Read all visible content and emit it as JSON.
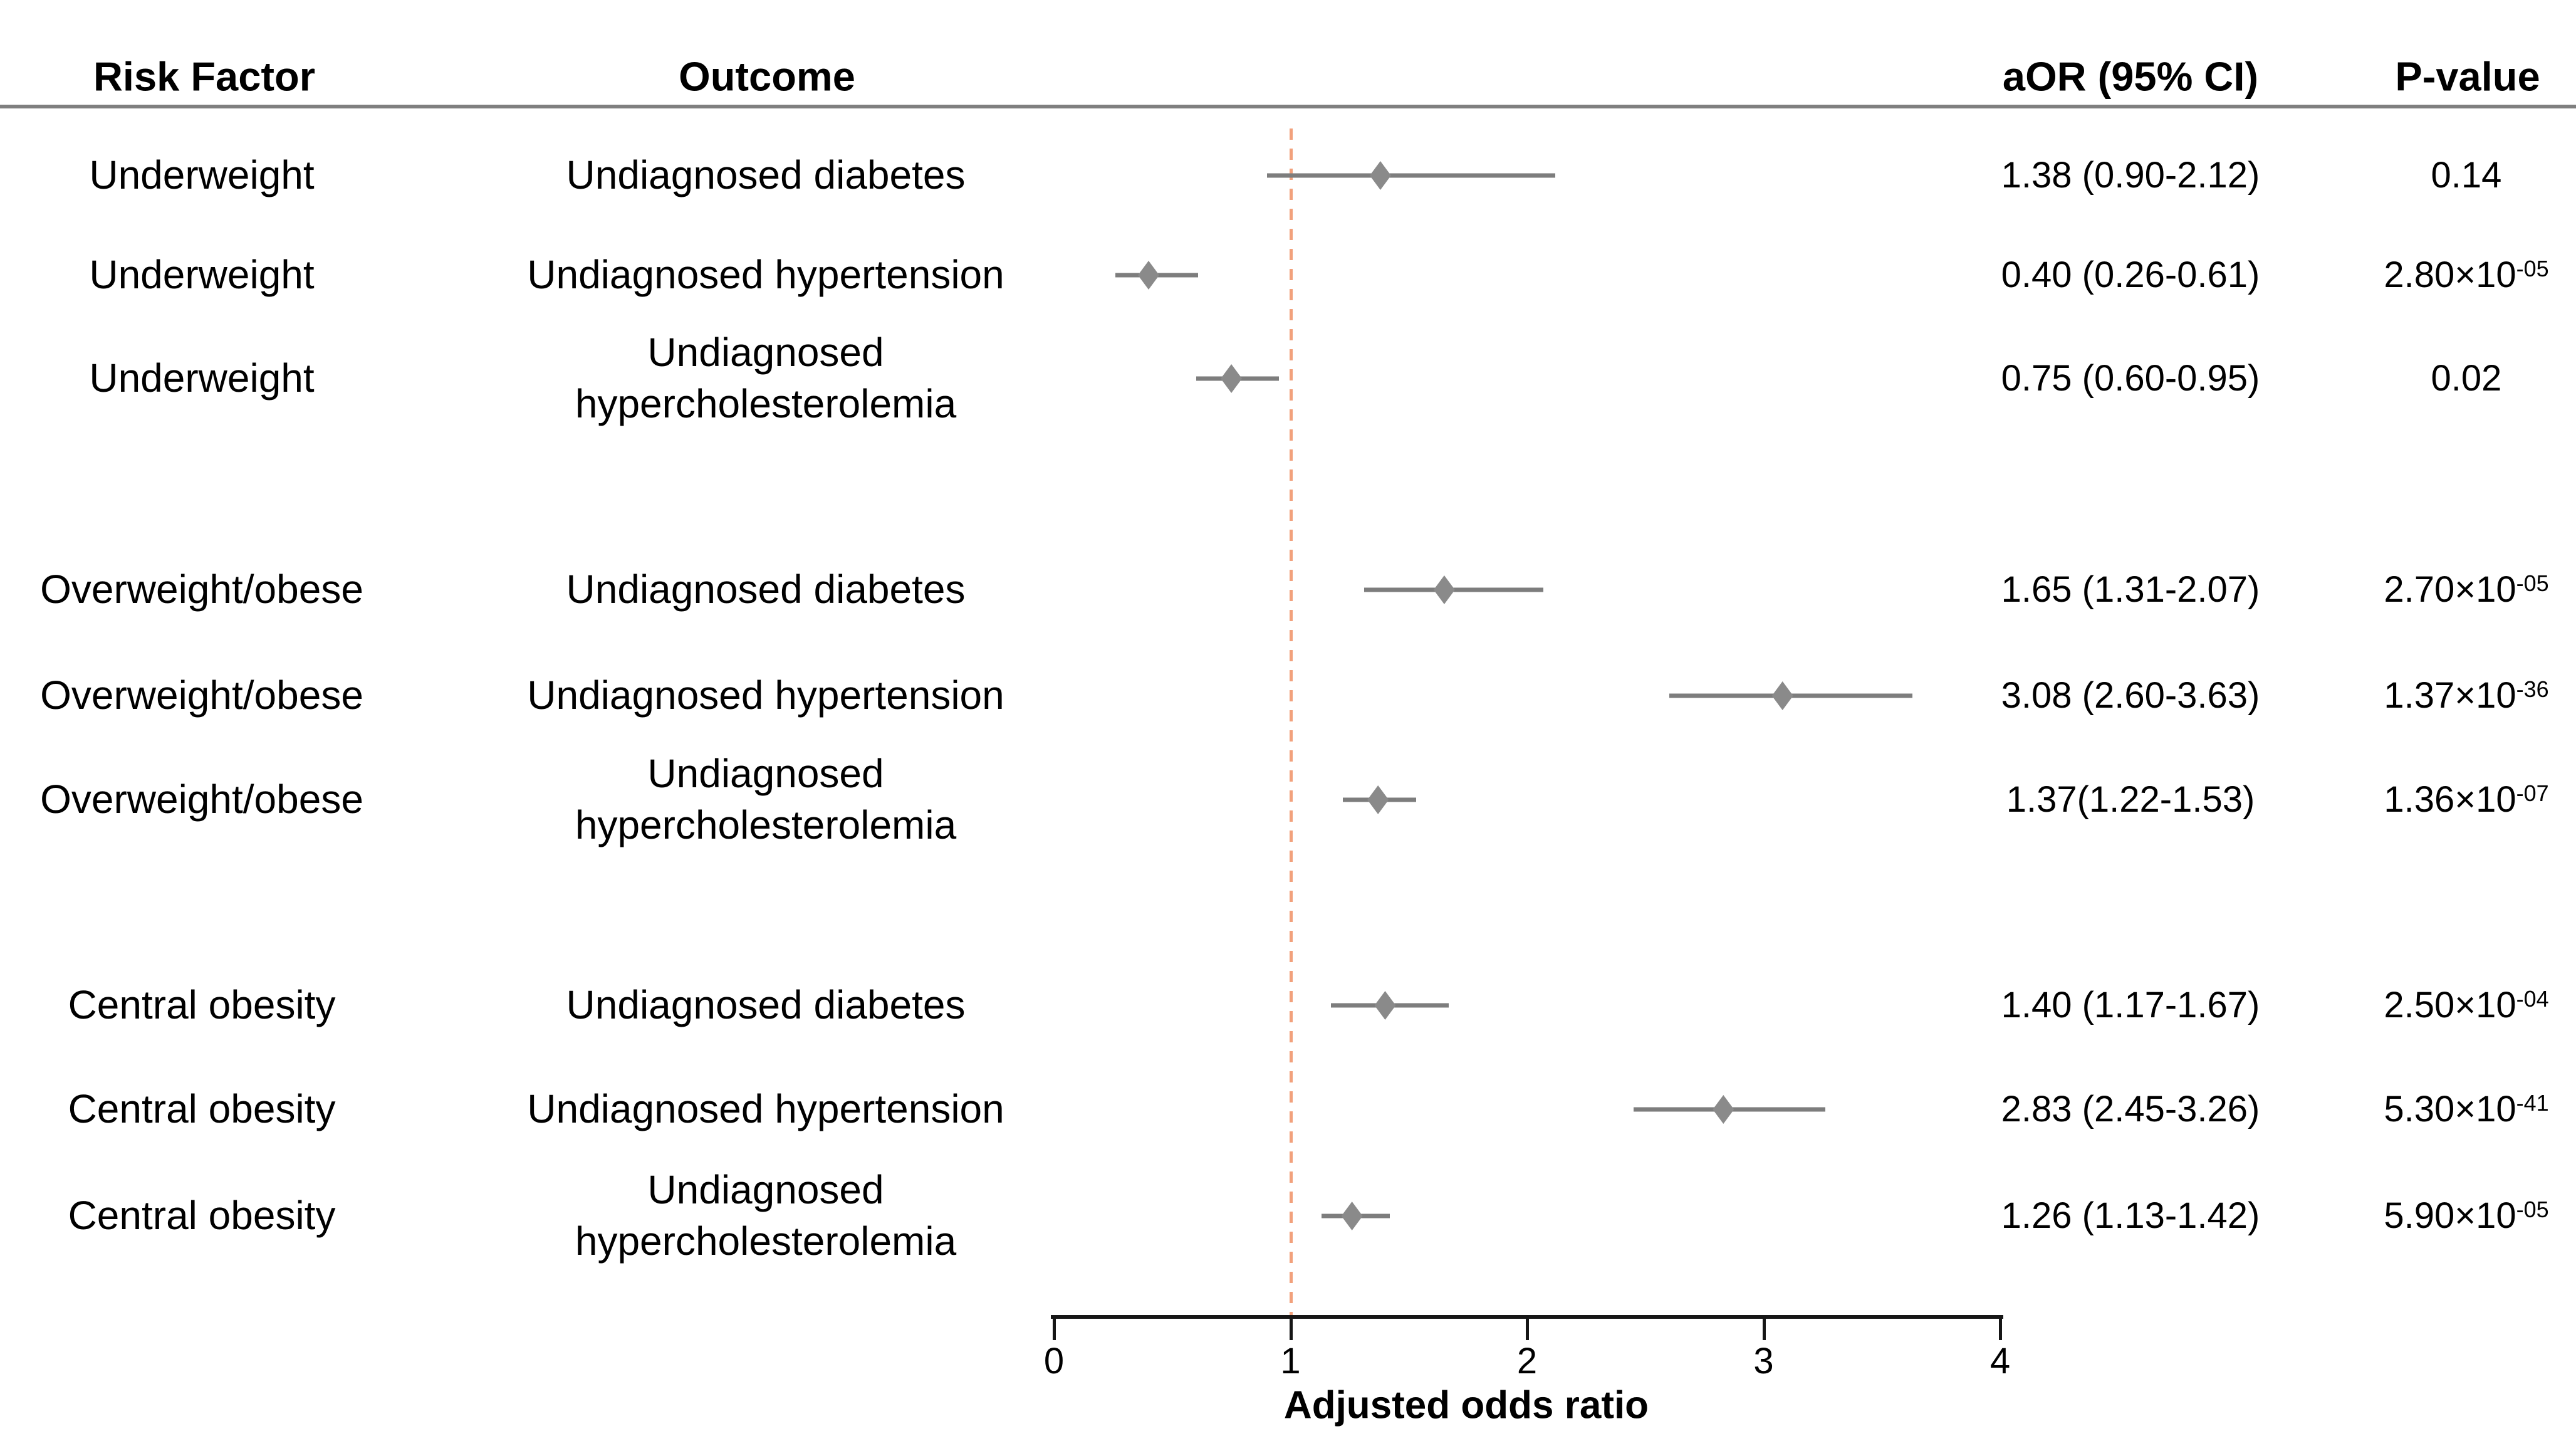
{
  "header": {
    "risk_factor": "Risk Factor",
    "outcome": "Outcome",
    "aor": "aOR (95% CI)",
    "p_value": "P-value"
  },
  "axis": {
    "label": "Adjusted odds ratio",
    "ticks": [
      0,
      1,
      2,
      3,
      4
    ],
    "min": 0,
    "max": 4,
    "reference_value": 1
  },
  "colors": {
    "marker": "#8a8a8a",
    "ci_line": "#7d7d7d",
    "reference_line": "#f2a17c",
    "header_rule": "#7f7f7f",
    "axis": "#161616",
    "text": "#000000"
  },
  "rows": [
    {
      "risk_factor": "Underweight",
      "outcome": "Undiagnosed diabetes",
      "aor_text": "1.38 (0.90-2.12)",
      "p_base": "0.14",
      "p_exp": "",
      "or": 1.38,
      "lo": 0.9,
      "hi": 2.12
    },
    {
      "risk_factor": "Underweight",
      "outcome": "Undiagnosed hypertension",
      "aor_text": "0.40 (0.26-0.61)",
      "p_base": "2.80×10",
      "p_exp": "-05",
      "or": 0.4,
      "lo": 0.26,
      "hi": 0.61
    },
    {
      "risk_factor": "Underweight",
      "outcome": "Undiagnosed\nhypercholesterolemia",
      "aor_text": "0.75 (0.60-0.95)",
      "p_base": "0.02",
      "p_exp": "",
      "or": 0.75,
      "lo": 0.6,
      "hi": 0.95
    },
    {
      "risk_factor": "Overweight/obese",
      "outcome": "Undiagnosed diabetes",
      "aor_text": "1.65 (1.31-2.07)",
      "p_base": "2.70×10",
      "p_exp": "-05",
      "or": 1.65,
      "lo": 1.31,
      "hi": 2.07
    },
    {
      "risk_factor": "Overweight/obese",
      "outcome": "Undiagnosed hypertension",
      "aor_text": "3.08 (2.60-3.63)",
      "p_base": "1.37×10",
      "p_exp": "-36",
      "or": 3.08,
      "lo": 2.6,
      "hi": 3.63
    },
    {
      "risk_factor": "Overweight/obese",
      "outcome": "Undiagnosed\nhypercholesterolemia",
      "aor_text": "1.37(1.22-1.53)",
      "p_base": "1.36×10",
      "p_exp": "-07",
      "or": 1.37,
      "lo": 1.22,
      "hi": 1.53
    },
    {
      "risk_factor": "Central obesity",
      "outcome": "Undiagnosed diabetes",
      "aor_text": "1.40 (1.17-1.67)",
      "p_base": "2.50×10",
      "p_exp": "-04",
      "or": 1.4,
      "lo": 1.17,
      "hi": 1.67
    },
    {
      "risk_factor": "Central obesity",
      "outcome": "Undiagnosed hypertension",
      "aor_text": "2.83 (2.45-3.26)",
      "p_base": "5.30×10",
      "p_exp": "-41",
      "or": 2.83,
      "lo": 2.45,
      "hi": 3.26
    },
    {
      "risk_factor": "Central obesity",
      "outcome": "Undiagnosed\nhypercholesterolemia",
      "aor_text": "1.26 (1.13-1.42)",
      "p_base": "5.90×10",
      "p_exp": "-05",
      "or": 1.26,
      "lo": 1.13,
      "hi": 1.42
    }
  ],
  "chart_data": {
    "type": "scatter",
    "subtype": "forest-plot",
    "title": "",
    "xlabel": "Adjusted odds ratio",
    "ylabel": "",
    "xlim": [
      0,
      4
    ],
    "x_ticks": [
      0,
      1,
      2,
      3,
      4
    ],
    "reference_line_x": 1,
    "grid": false,
    "legend_position": "none",
    "categories": [
      "Underweight — Undiagnosed diabetes",
      "Underweight — Undiagnosed hypertension",
      "Underweight — Undiagnosed hypercholesterolemia",
      "Overweight/obese — Undiagnosed diabetes",
      "Overweight/obese — Undiagnosed hypertension",
      "Overweight/obese — Undiagnosed hypercholesterolemia",
      "Central obesity — Undiagnosed diabetes",
      "Central obesity — Undiagnosed hypertension",
      "Central obesity — Undiagnosed hypercholesterolemia"
    ],
    "series": [
      {
        "name": "aOR",
        "values": [
          1.38,
          0.4,
          0.75,
          1.65,
          3.08,
          1.37,
          1.4,
          2.83,
          1.26
        ]
      },
      {
        "name": "ci_lower",
        "values": [
          0.9,
          0.26,
          0.6,
          1.31,
          2.6,
          1.22,
          1.17,
          2.45,
          1.13
        ]
      },
      {
        "name": "ci_upper",
        "values": [
          2.12,
          0.61,
          0.95,
          2.07,
          3.63,
          1.53,
          1.67,
          3.26,
          1.42
        ]
      },
      {
        "name": "p_value_text",
        "values": [
          "0.14",
          "2.80×10-05",
          "0.02",
          "2.70×10-05",
          "1.37×10-36",
          "1.36×10-07",
          "2.50×10-04",
          "5.30×10-41",
          "5.90×10-05"
        ]
      }
    ]
  }
}
